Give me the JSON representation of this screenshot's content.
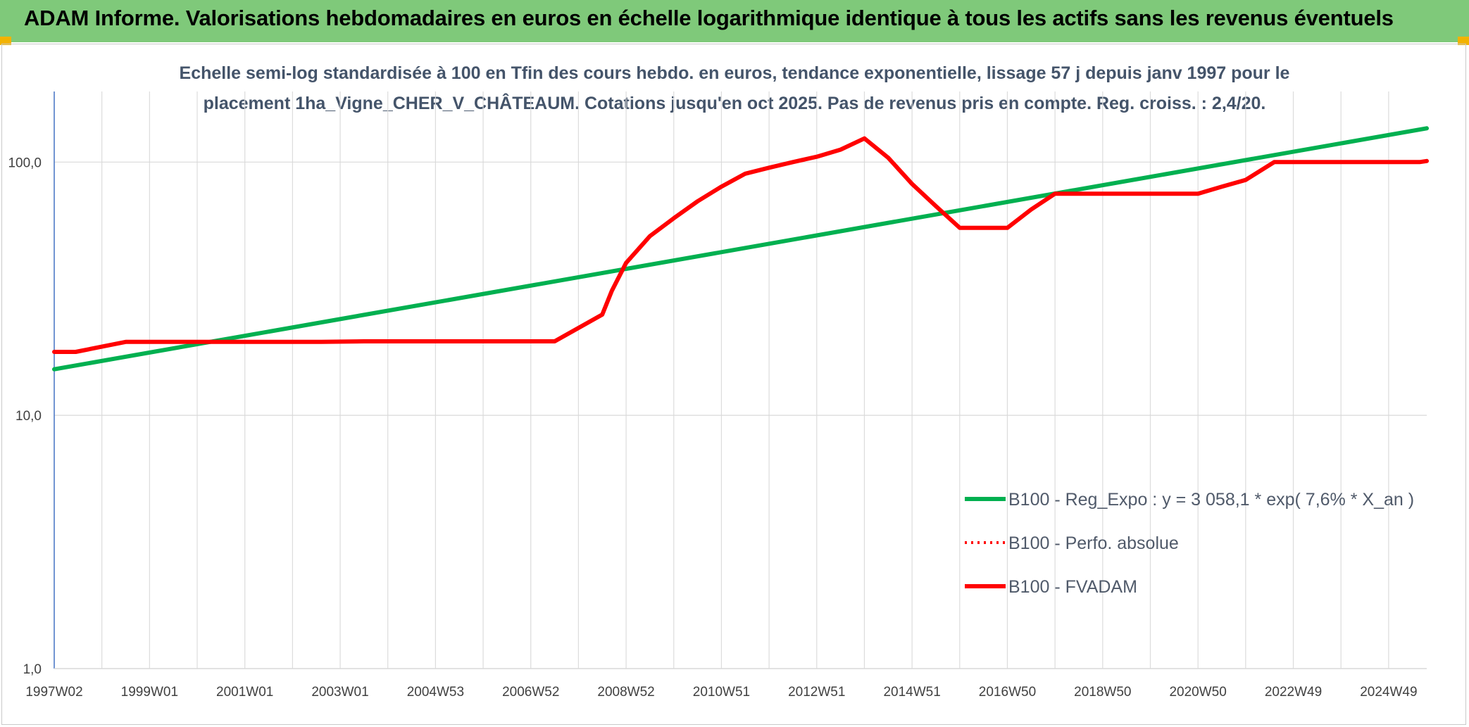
{
  "header": {
    "title": "ADAM Informe. Valorisations hebdomadaires en euros en échelle logarithmique identique à tous les actifs sans les revenus éventuels"
  },
  "chart_data": {
    "type": "line",
    "title_line1": "Echelle semi-log standardisée à 100 en Tfin des cours hebdo. en euros, tendance exponentielle, lissage 57 j depuis janv 1997 pour le",
    "title_line2": "placement 1ha_Vigne_CHER_V_CHÂTEAUM. Cotations jusqu'en oct 2025. Pas de revenus pris en compte. Reg. croiss. : 2,4/20.",
    "y_scale": "log",
    "ylim": [
      1,
      190
    ],
    "y_ticks": [
      {
        "value": 100,
        "label": "100,0"
      },
      {
        "value": 10,
        "label": "10,0"
      },
      {
        "value": 1,
        "label": "1,0"
      }
    ],
    "xlim": [
      1997.0,
      2025.8
    ],
    "x_ticks": [
      {
        "value": 1997.0,
        "label": "1997W02"
      },
      {
        "value": 1999.0,
        "label": "1999W01"
      },
      {
        "value": 2001.0,
        "label": "2001W01"
      },
      {
        "value": 2003.0,
        "label": "2003W01"
      },
      {
        "value": 2005.0,
        "label": "2004W53"
      },
      {
        "value": 2007.0,
        "label": "2006W52"
      },
      {
        "value": 2009.0,
        "label": "2008W52"
      },
      {
        "value": 2011.0,
        "label": "2010W51"
      },
      {
        "value": 2013.0,
        "label": "2012W51"
      },
      {
        "value": 2015.0,
        "label": "2014W51"
      },
      {
        "value": 2017.0,
        "label": "2016W50"
      },
      {
        "value": 2019.0,
        "label": "2018W50"
      },
      {
        "value": 2021.0,
        "label": "2020W50"
      },
      {
        "value": 2023.0,
        "label": "2022W49"
      },
      {
        "value": 2025.0,
        "label": "2024W49"
      }
    ],
    "grid": true,
    "legend_position": "bottom-right",
    "series": [
      {
        "name": "B100 - Reg_Expo : y = 3 058,1 * exp( 7,6% *  X_an )",
        "color": "#00b050",
        "style": "solid",
        "x": [
          1997.0,
          2025.8
        ],
        "y": [
          15.2,
          136
        ]
      },
      {
        "name": "B100 - Perfo. absolue",
        "color": "#ff0000",
        "style": "dotted",
        "x": [],
        "y": []
      },
      {
        "name": "B100 - FVADAM",
        "color": "#ff0000",
        "style": "solid",
        "x": [
          1997.0,
          1997.45,
          1998.5,
          2000.0,
          2002.6,
          2003.5,
          2007.5,
          2008.5,
          2008.7,
          2009.0,
          2009.5,
          2010.0,
          2010.5,
          2011.0,
          2011.5,
          2012.0,
          2012.5,
          2013.0,
          2013.5,
          2014.0,
          2014.5,
          2015.0,
          2015.5,
          2016.0,
          2016.5,
          2017.0,
          2017.5,
          2018.0,
          2019.0,
          2020.0,
          2021.0,
          2021.5,
          2022.0,
          2022.6,
          2023.0,
          2024.0,
          2025.0,
          2025.65,
          2025.8
        ],
        "y": [
          17.8,
          17.8,
          19.5,
          19.5,
          19.5,
          19.6,
          19.6,
          25.0,
          31,
          40,
          51,
          60,
          70,
          80,
          90,
          95,
          100,
          105,
          112,
          124,
          104,
          82,
          67,
          55,
          55,
          55,
          65,
          75,
          75,
          75,
          75,
          80,
          85,
          100,
          100,
          100,
          100,
          100,
          101
        ]
      }
    ]
  }
}
